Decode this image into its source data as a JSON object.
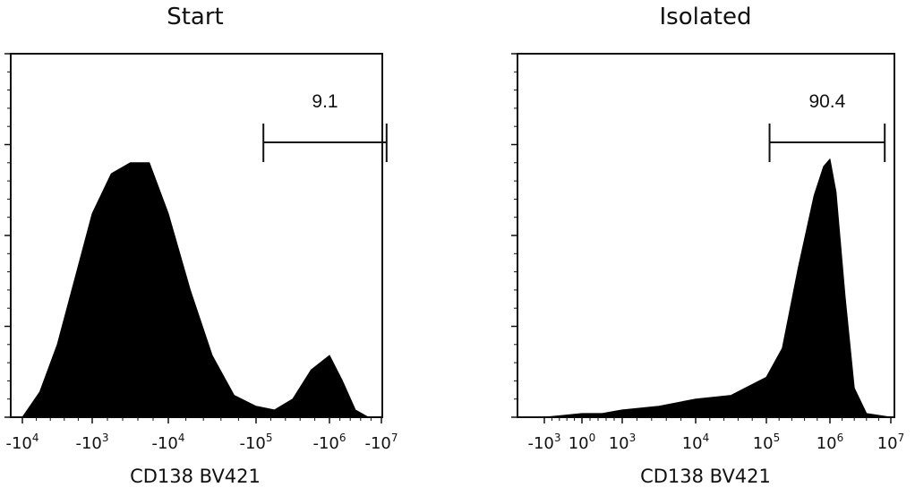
{
  "chart_data": [
    {
      "type": "histogram",
      "title": "Start",
      "xlabel": "CD138 BV421",
      "ylabel": "",
      "x_scale": "biexponential",
      "y_ticks_labeled": false,
      "xtick_labels": [
        {
          "base": "-10",
          "exp": "4"
        },
        {
          "base": "-10",
          "exp": "3"
        },
        {
          "base": "-10",
          "exp": "4"
        },
        {
          "base": "-10",
          "exp": "5"
        },
        {
          "base": "-10",
          "exp": "6"
        },
        {
          "base": "-10",
          "exp": "7"
        }
      ],
      "gate": {
        "label": "9.1",
        "from_tick": 3.1,
        "to_tick": 5.1
      },
      "histogram": {
        "x_tick_index": [
          0.0,
          0.25,
          0.5,
          0.75,
          1.0,
          1.25,
          1.5,
          1.75,
          2.0,
          2.25,
          2.5,
          2.75,
          3.0,
          3.25,
          3.5,
          3.75,
          4.0,
          4.25,
          4.5,
          4.75,
          5.0
        ],
        "relative_height": [
          0.0,
          0.07,
          0.2,
          0.38,
          0.56,
          0.67,
          0.7,
          0.7,
          0.56,
          0.35,
          0.17,
          0.06,
          0.03,
          0.02,
          0.05,
          0.13,
          0.17,
          0.1,
          0.02,
          0.0,
          0.0
        ]
      }
    },
    {
      "type": "histogram",
      "title": "Isolated",
      "xlabel": "CD138 BV421",
      "ylabel": "",
      "x_scale": "biexponential",
      "y_ticks_labeled": false,
      "xtick_labels": [
        {
          "base": "-10",
          "exp": "3"
        },
        {
          "base": "10",
          "exp": "0"
        },
        {
          "base": "10",
          "exp": "3"
        },
        {
          "base": "10",
          "exp": "4"
        },
        {
          "base": "10",
          "exp": "5"
        },
        {
          "base": "10",
          "exp": "6"
        },
        {
          "base": "10",
          "exp": "7"
        }
      ],
      "gate": {
        "label": "90.4",
        "from_tick": 4.05,
        "to_tick": 5.9
      },
      "histogram": {
        "x_tick_index": [
          0.0,
          0.5,
          1.0,
          1.5,
          2.0,
          2.5,
          3.0,
          3.5,
          4.0,
          4.25,
          4.5,
          4.75,
          4.9,
          5.0,
          5.1,
          5.25,
          5.4,
          5.6,
          6.0
        ],
        "relative_height": [
          0.0,
          0.005,
          0.01,
          0.01,
          0.02,
          0.03,
          0.05,
          0.06,
          0.11,
          0.19,
          0.41,
          0.61,
          0.69,
          0.71,
          0.62,
          0.33,
          0.08,
          0.01,
          0.0
        ]
      }
    }
  ]
}
